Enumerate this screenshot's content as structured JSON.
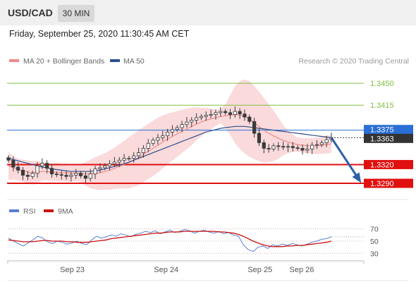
{
  "header": {
    "pair": "USD/CAD",
    "timeframe": "30 MIN"
  },
  "datetime": "Friday, September 25, 2020 11:30:45 AM CET",
  "legend": {
    "ma20": "MA 20 + Bollinger Bands",
    "ma50": "MA 50",
    "credit": "Research © 2020 Trading Central"
  },
  "rsi_legend": {
    "rsi": "RSI",
    "ma9": "9MA"
  },
  "colors": {
    "candle": "#3a3a3a",
    "bollinger": "#f7c6c8",
    "ma20": "#f08a8a",
    "ma50": "#2b4f8f",
    "resistance_green": "#7fbf3f",
    "pivot_blue": "#2a6fd6",
    "support_red": "#e01010",
    "arrow": "#2c5fa8",
    "rsi": "#5a7fd1",
    "rsi_ma": "#cc1111"
  },
  "chart_data": [
    {
      "type": "candlestick",
      "title": "USD/CAD",
      "ylim": [
        1.3272,
        1.3475
      ],
      "levels": [
        {
          "label": "1.3450",
          "value": 1.345,
          "kind": "resistance"
        },
        {
          "label": "1.3415",
          "value": 1.3415,
          "kind": "resistance"
        },
        {
          "label": "1.3375",
          "value": 1.3375,
          "kind": "pivot"
        },
        {
          "label": "1.3363",
          "value": 1.3363,
          "kind": "last"
        },
        {
          "label": "1.3320",
          "value": 1.332,
          "kind": "support"
        },
        {
          "label": "1.3290",
          "value": 1.329,
          "kind": "support"
        }
      ],
      "x_ticks": [
        "Sep 23",
        "Sep 24",
        "Sep 25",
        "Sep 26"
      ],
      "x_tick_pos": [
        0.183,
        0.446,
        0.709,
        0.826
      ],
      "closes": [
        1.3327,
        1.3316,
        1.3311,
        1.3303,
        1.3301,
        1.3306,
        1.3318,
        1.3322,
        1.3314,
        1.3305,
        1.3304,
        1.3303,
        1.3301,
        1.3303,
        1.3306,
        1.3302,
        1.3298,
        1.3305,
        1.3313,
        1.3315,
        1.3318,
        1.3321,
        1.3324,
        1.3327,
        1.333,
        1.333,
        1.3334,
        1.3339,
        1.3346,
        1.3354,
        1.3359,
        1.3363,
        1.3366,
        1.3372,
        1.3376,
        1.3379,
        1.3384,
        1.3388,
        1.3391,
        1.3395,
        1.3397,
        1.3399,
        1.34,
        1.3403,
        1.3405,
        1.3403,
        1.34,
        1.3405,
        1.3401,
        1.3396,
        1.3389,
        1.337,
        1.3355,
        1.3346,
        1.3345,
        1.335,
        1.3349,
        1.3348,
        1.3349,
        1.3347,
        1.3346,
        1.3343,
        1.3345,
        1.3351,
        1.3352,
        1.3355,
        1.336,
        1.3363
      ],
      "ma20": [
        1.3318,
        1.3315,
        1.3312,
        1.331,
        1.3308,
        1.3307,
        1.3308,
        1.3309,
        1.3309,
        1.3308,
        1.3308,
        1.3307,
        1.3307,
        1.3306,
        1.3306,
        1.3306,
        1.3305,
        1.3305,
        1.3306,
        1.3307,
        1.3309,
        1.3311,
        1.3314,
        1.3317,
        1.332,
        1.3323,
        1.3327,
        1.3331,
        1.3336,
        1.3341,
        1.3346,
        1.3351,
        1.3356,
        1.3361,
        1.3365,
        1.3369,
        1.3373,
        1.3377,
        1.3381,
        1.3385,
        1.3388,
        1.3391,
        1.3393,
        1.3395,
        1.3397,
        1.3398,
        1.3399,
        1.34,
        1.3399,
        1.3397,
        1.3393,
        1.3387,
        1.3381,
        1.3375,
        1.337,
        1.3366,
        1.3362,
        1.3359,
        1.3356,
        1.3354,
        1.3352,
        1.3351,
        1.335,
        1.335,
        1.335,
        1.3351,
        1.3352,
        1.3353
      ],
      "ma50": [
        1.333,
        1.3328,
        1.3326,
        1.3324,
        1.3322,
        1.332,
        1.3318,
        1.3316,
        1.3315,
        1.3313,
        1.3312,
        1.3311,
        1.331,
        1.3309,
        1.3309,
        1.3309,
        1.3309,
        1.3309,
        1.331,
        1.3311,
        1.3313,
        1.3315,
        1.3317,
        1.3319,
        1.3321,
        1.3324,
        1.3327,
        1.333,
        1.3333,
        1.3336,
        1.3339,
        1.3342,
        1.3345,
        1.3348,
        1.3351,
        1.3354,
        1.3357,
        1.336,
        1.3363,
        1.3366,
        1.3369,
        1.3372,
        1.3374,
        1.3376,
        1.3378,
        1.3379,
        1.338,
        1.3381,
        1.3381,
        1.3381,
        1.338,
        1.3379,
        1.3378,
        1.3377,
        1.3376,
        1.3375,
        1.3374,
        1.3373,
        1.3372,
        1.3371,
        1.337,
        1.3369,
        1.3368,
        1.3367,
        1.3366,
        1.3365,
        1.3364,
        1.3363
      ],
      "forecast": {
        "from": 1.3363,
        "to": 1.329
      }
    },
    {
      "type": "line",
      "title": "RSI",
      "ylim": [
        20,
        80
      ],
      "y_ticks": [
        70,
        50,
        30
      ],
      "series": [
        {
          "name": "RSI",
          "values": [
            55,
            50,
            46,
            42,
            47,
            52,
            58,
            55,
            49,
            46,
            50,
            48,
            45,
            47,
            50,
            46,
            44,
            52,
            58,
            55,
            57,
            60,
            58,
            62,
            60,
            57,
            61,
            63,
            66,
            64,
            67,
            62,
            65,
            68,
            64,
            66,
            69,
            67,
            63,
            66,
            68,
            65,
            63,
            66,
            62,
            64,
            60,
            58,
            44,
            36,
            33,
            40,
            42,
            38,
            44,
            42,
            45,
            43,
            46,
            44,
            42,
            45,
            48,
            50,
            53,
            54,
            57
          ]
        },
        {
          "name": "9MA",
          "values": [
            52,
            51,
            50,
            49,
            49,
            49,
            50,
            51,
            51,
            50,
            50,
            50,
            49,
            49,
            48,
            48,
            48,
            49,
            50,
            51,
            52,
            54,
            55,
            56,
            57,
            58,
            59,
            60,
            61,
            62,
            63,
            63,
            64,
            65,
            65,
            65,
            66,
            66,
            66,
            66,
            66,
            66,
            66,
            65,
            65,
            64,
            63,
            61,
            58,
            54,
            50,
            47,
            44,
            42,
            41,
            41,
            41,
            42,
            42,
            43,
            43,
            44,
            45,
            46,
            47,
            48,
            50
          ]
        }
      ]
    }
  ]
}
